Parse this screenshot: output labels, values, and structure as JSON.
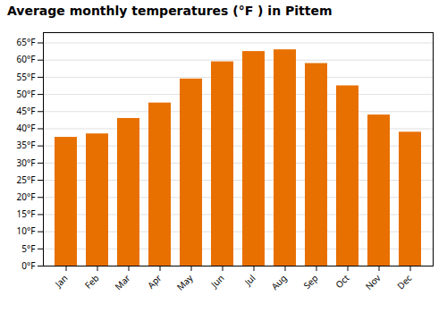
{
  "chart_data": {
    "type": "bar",
    "title": "Average monthly temperatures (°F ) in Pittem",
    "categories": [
      "Jan",
      "Feb",
      "Mar",
      "Apr",
      "May",
      "Jun",
      "Jul",
      "Aug",
      "Sep",
      "Oct",
      "Nov",
      "Dec"
    ],
    "values": [
      37.5,
      38.5,
      43.0,
      47.5,
      54.5,
      59.5,
      62.5,
      63.0,
      59.0,
      52.5,
      44.0,
      39.0
    ],
    "color": "#E87000",
    "ylim": [
      0,
      68
    ],
    "yticks": [
      {
        "value": 0,
        "label": "0°F"
      },
      {
        "value": 5,
        "label": "5°F"
      },
      {
        "value": 10,
        "label": "10°F"
      },
      {
        "value": 15,
        "label": "15°F"
      },
      {
        "value": 20,
        "label": "20°F"
      },
      {
        "value": 25,
        "label": "25°F"
      },
      {
        "value": 30,
        "label": "30°F"
      },
      {
        "value": 35,
        "label": "35°F"
      },
      {
        "value": 40,
        "label": "40°F"
      },
      {
        "value": 45,
        "label": "45°F"
      },
      {
        "value": 50,
        "label": "50°F"
      },
      {
        "value": 55,
        "label": "55°F"
      },
      {
        "value": 60,
        "label": "60°F"
      },
      {
        "value": 65,
        "label": "65°F"
      }
    ],
    "grid": true
  }
}
